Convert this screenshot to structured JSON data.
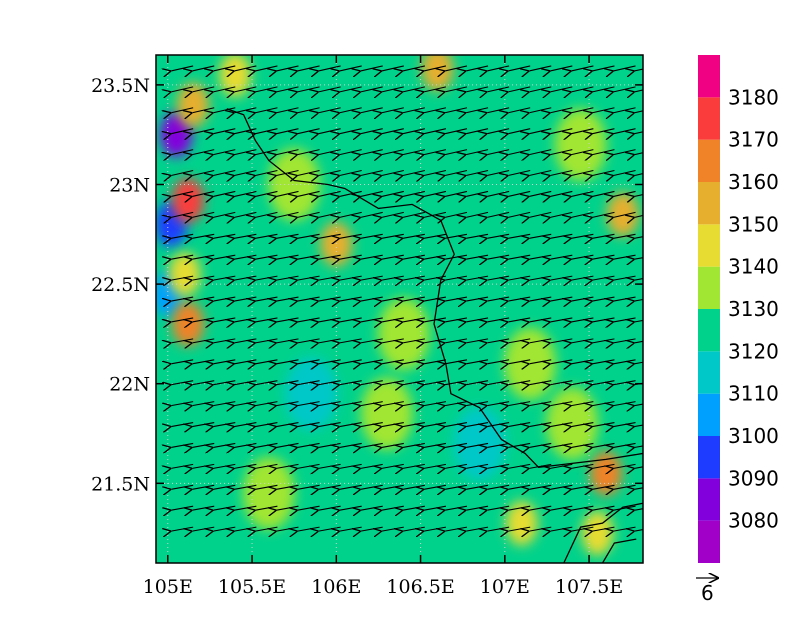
{
  "chart_data": {
    "type": "heatmap",
    "title": "",
    "xlabel": "",
    "ylabel": "",
    "x_range": [
      104.93,
      107.82
    ],
    "y_range": [
      21.1,
      23.65
    ],
    "x_ticks": [
      {
        "value": 105.0,
        "label": "105E"
      },
      {
        "value": 105.5,
        "label": "105.5E"
      },
      {
        "value": 106.0,
        "label": "106E"
      },
      {
        "value": 106.5,
        "label": "106.5E"
      },
      {
        "value": 107.0,
        "label": "107E"
      },
      {
        "value": 107.5,
        "label": "107.5E"
      }
    ],
    "y_ticks": [
      {
        "value": 21.5,
        "label": "21.5N"
      },
      {
        "value": 22.0,
        "label": "22N"
      },
      {
        "value": 22.5,
        "label": "22.5N"
      },
      {
        "value": 23.0,
        "label": "23N"
      },
      {
        "value": 23.5,
        "label": "23.5N"
      }
    ],
    "grid": true,
    "colorbar": {
      "placement": "right",
      "levels": [
        {
          "label": "",
          "color": "#a000c8"
        },
        {
          "label": "3080",
          "color": "#8200dc"
        },
        {
          "label": "3090",
          "color": "#1e3cff"
        },
        {
          "label": "3100",
          "color": "#00a0ff"
        },
        {
          "label": "3110",
          "color": "#00c8c8"
        },
        {
          "label": "3120",
          "color": "#00d28c"
        },
        {
          "label": "3130",
          "color": "#a0e632"
        },
        {
          "label": "3140",
          "color": "#e6dc32"
        },
        {
          "label": "3150",
          "color": "#e6af2d"
        },
        {
          "label": "3160",
          "color": "#f08228"
        },
        {
          "label": "3170",
          "color": "#fa3c3c"
        },
        {
          "label": "3180",
          "color": "#f00082"
        }
      ]
    },
    "field_patches": [
      {
        "lon": 105.05,
        "lat": 23.25,
        "level": 1
      },
      {
        "lon": 105.02,
        "lat": 22.8,
        "level": 2
      },
      {
        "lon": 105.0,
        "lat": 22.45,
        "level": 3
      },
      {
        "lon": 105.12,
        "lat": 22.92,
        "level": 10
      },
      {
        "lon": 105.15,
        "lat": 23.4,
        "level": 8
      },
      {
        "lon": 105.12,
        "lat": 22.3,
        "level": 9
      },
      {
        "lon": 105.1,
        "lat": 22.55,
        "level": 7
      },
      {
        "lon": 105.4,
        "lat": 23.55,
        "level": 7
      },
      {
        "lon": 106.6,
        "lat": 23.58,
        "level": 8
      },
      {
        "lon": 106.0,
        "lat": 22.7,
        "level": 8
      },
      {
        "lon": 107.45,
        "lat": 23.2,
        "level": 6
      },
      {
        "lon": 107.7,
        "lat": 22.85,
        "level": 8
      },
      {
        "lon": 107.6,
        "lat": 21.55,
        "level": 9
      },
      {
        "lon": 107.55,
        "lat": 21.25,
        "level": 7
      },
      {
        "lon": 107.4,
        "lat": 21.8,
        "level": 6
      },
      {
        "lon": 107.1,
        "lat": 21.3,
        "level": 7
      },
      {
        "lon": 106.85,
        "lat": 21.7,
        "level": 4
      },
      {
        "lon": 105.85,
        "lat": 21.95,
        "level": 4
      },
      {
        "lon": 106.4,
        "lat": 22.25,
        "level": 6
      },
      {
        "lon": 105.6,
        "lat": 21.45,
        "level": 6
      },
      {
        "lon": 106.3,
        "lat": 21.85,
        "level": 6
      },
      {
        "lon": 107.15,
        "lat": 22.1,
        "level": 6
      },
      {
        "lon": 105.75,
        "lat": 23.0,
        "level": 6
      }
    ],
    "wind": {
      "lat_start": 23.57,
      "lat_step": 0.105,
      "rows": 23,
      "lon_start": 105.02,
      "lon_step": 0.125,
      "cols": 23,
      "reference_vector_label": "6"
    },
    "boundaries": [
      [
        [
          105.35,
          23.38
        ],
        [
          105.45,
          23.35
        ],
        [
          105.52,
          23.22
        ],
        [
          105.6,
          23.12
        ],
        [
          105.75,
          23.02
        ],
        [
          105.95,
          23.0
        ],
        [
          106.05,
          22.98
        ],
        [
          106.25,
          22.88
        ],
        [
          106.45,
          22.9
        ],
        [
          106.62,
          22.82
        ],
        [
          106.7,
          22.65
        ],
        [
          106.62,
          22.52
        ],
        [
          106.58,
          22.3
        ],
        [
          106.65,
          22.1
        ],
        [
          106.68,
          21.95
        ],
        [
          106.85,
          21.88
        ],
        [
          106.98,
          21.72
        ],
        [
          107.12,
          21.65
        ],
        [
          107.2,
          21.58
        ],
        [
          107.4,
          21.6
        ],
        [
          107.6,
          21.62
        ],
        [
          107.82,
          21.65
        ]
      ],
      [
        [
          107.35,
          21.1
        ],
        [
          107.45,
          21.28
        ],
        [
          107.58,
          21.3
        ],
        [
          107.7,
          21.38
        ],
        [
          107.82,
          21.4
        ]
      ],
      [
        [
          107.58,
          21.1
        ],
        [
          107.65,
          21.2
        ],
        [
          107.78,
          21.22
        ]
      ]
    ]
  }
}
